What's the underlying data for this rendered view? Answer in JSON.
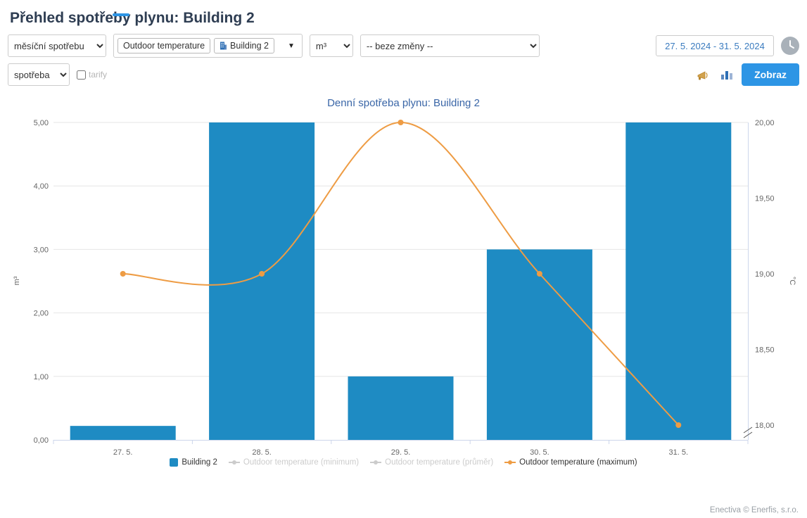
{
  "page": {
    "title": "Přehled spotřeby plynu: Building 2",
    "footer": "Enectiva © Enerfis, s.r.o."
  },
  "toolbar": {
    "period_select": "měsíční spotřebu",
    "series_tags": [
      "Outdoor temperature",
      "Building 2"
    ],
    "unit_select": "m³",
    "transform_select": "-- beze změny --",
    "date_range": "27. 5. 2024 - 31. 5. 2024",
    "mode_select": "spotřeba",
    "tarify_label": "tarify",
    "show_button": "Zobraz"
  },
  "icons": {
    "clock": "clock-icon",
    "export": "megaphone-icon",
    "chart_type": "bar-chart-icon",
    "building": "building-icon",
    "dropdown": "chevron-down-icon"
  },
  "colors": {
    "accent": "#2d95e5",
    "bar": "#1e8bc3",
    "line": "#ee9c44",
    "page_title": "#2e3d52",
    "chart_title": "#3a66a7",
    "disabled_legend": "#cccccc",
    "grid": "#e6e6e6",
    "axis_line": "#ccd6eb",
    "tick_text": "#666666"
  },
  "chart_data": {
    "type": "bar",
    "combo": "bar+line",
    "title": "Denní spotřeba plynu: Building 2",
    "categories": [
      "27. 5.",
      "28. 5.",
      "29. 5.",
      "30. 5.",
      "31. 5."
    ],
    "series": [
      {
        "name": "Building 2",
        "type": "bar",
        "axis": "left",
        "color": "#1e8bc3",
        "values": [
          0.22,
          5,
          1,
          3,
          5
        ]
      },
      {
        "name": "Outdoor temperature (maximum)",
        "type": "line",
        "axis": "right",
        "color": "#ee9c44",
        "values": [
          19,
          19,
          20,
          19,
          18
        ]
      }
    ],
    "legend": [
      {
        "label": "Building 2",
        "type": "bar",
        "color": "#1e8bc3",
        "enabled": true
      },
      {
        "label": "Outdoor temperature (minimum)",
        "type": "line",
        "color": "#cccccc",
        "enabled": false
      },
      {
        "label": "Outdoor temperature (průměr)",
        "type": "line",
        "color": "#cccccc",
        "enabled": false
      },
      {
        "label": "Outdoor temperature (maximum)",
        "type": "line",
        "color": "#ee9c44",
        "enabled": true
      }
    ],
    "left_axis": {
      "label": "m³",
      "min": 0,
      "max": 5,
      "tick_labels": [
        "0,00",
        "1,00",
        "2,00",
        "3,00",
        "4,00",
        "5,00"
      ]
    },
    "right_axis": {
      "label": "°C",
      "min": 18,
      "max": 20,
      "tick_labels": [
        "18,00",
        "18,50",
        "19,00",
        "19,50",
        "20,00"
      ],
      "break_at_bottom": true
    },
    "legend_position": "bottom",
    "grid": "horizontal"
  }
}
